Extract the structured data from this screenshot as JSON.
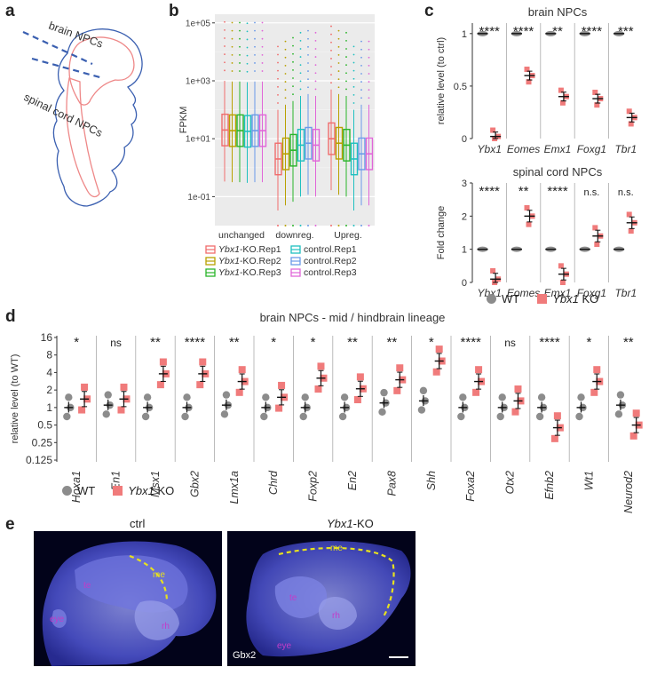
{
  "panel_letters": {
    "a": "a",
    "b": "b",
    "c": "c",
    "d": "d",
    "e": "e"
  },
  "panel_a": {
    "brain_label": "brain NPCs",
    "spinal_label": "spinal cord NPCs"
  },
  "chart_data": [
    {
      "id": "b",
      "type": "box",
      "ylabel": "FPKM",
      "y_scale": "log10",
      "ytick_labels": [
        "1e-01",
        "1e+01",
        "1e+03",
        "1e+05"
      ],
      "categories": [
        "unchanged",
        "downreg.",
        "Upreg."
      ],
      "series": [
        {
          "name": "Ybx1-KO.Rep1",
          "color": "#f06c6c",
          "medians": [
            20,
            2,
            10
          ]
        },
        {
          "name": "Ybx1-KO.Rep2",
          "color": "#b8a000",
          "medians": [
            19,
            3,
            7
          ]
        },
        {
          "name": "Ybx1-KO.Rep3",
          "color": "#2ab52a",
          "medians": [
            19,
            4,
            6
          ]
        },
        {
          "name": "control.Rep1",
          "color": "#1fc0c0",
          "medians": [
            18,
            6,
            2
          ]
        },
        {
          "name": "control.Rep2",
          "color": "#6a9ae8",
          "medians": [
            19,
            7,
            3
          ]
        },
        {
          "name": "control.Rep3",
          "color": "#e066d8",
          "medians": [
            19,
            6,
            3
          ]
        }
      ],
      "legend_ko_prefix": "Ybx1",
      "legend_ko_suffixes": [
        "-KO.Rep1",
        "-KO.Rep2",
        "-KO.Rep3"
      ],
      "legend_ctrl": [
        "control.Rep1",
        "control.Rep2",
        "control.Rep3"
      ]
    },
    {
      "id": "c_top",
      "type": "scatter",
      "title": "brain NPCs",
      "ylabel": "relative level (to ctrl)",
      "ylim": [
        0,
        1.1
      ],
      "ytick_labels": [
        "0",
        "0.5",
        "1"
      ],
      "categories": [
        "Ybx1",
        "Eomes",
        "Emx1",
        "Foxg1",
        "Tbr1"
      ],
      "significance": [
        "****",
        "****",
        "**",
        "****",
        "***"
      ],
      "wt_mean": [
        1,
        1,
        1,
        1,
        1
      ],
      "ko_mean": [
        0.02,
        0.6,
        0.4,
        0.38,
        0.2
      ]
    },
    {
      "id": "c_bottom",
      "type": "scatter",
      "title": "spinal cord NPCs",
      "ylabel": "Fold change",
      "ylim": [
        0,
        3
      ],
      "ytick_labels": [
        "0",
        "1",
        "2",
        "3"
      ],
      "categories": [
        "Ybx1",
        "Eomes",
        "Emx1",
        "Foxg1",
        "Tbr1"
      ],
      "significance": [
        "****",
        "**",
        "****",
        "n.s.",
        "n.s."
      ],
      "wt_mean": [
        1,
        1,
        1,
        1,
        1
      ],
      "ko_mean": [
        0.1,
        2.0,
        0.25,
        1.4,
        1.8
      ]
    },
    {
      "id": "d",
      "type": "scatter",
      "title": "brain NPCs - mid / hindbrain lineage",
      "ylabel": "relative level (to WT)",
      "y_scale": "log2",
      "ytick_labels": [
        "16",
        "8",
        "4",
        "2",
        "1",
        "0.5",
        "0.25",
        "0.125"
      ],
      "categories": [
        "Hoxa1",
        "En1",
        "Msx1",
        "Gbx2",
        "Lmx1a",
        "Chrd",
        "Foxp2",
        "En2",
        "Pax8",
        "Shh",
        "Foxa2",
        "Otx2",
        "Efnb2",
        "Wt1",
        "Neurod2"
      ],
      "significance": [
        "*",
        "ns",
        "**",
        "****",
        "**",
        "*",
        "*",
        "**",
        "**",
        "*",
        "****",
        "ns",
        "****",
        "*",
        "**"
      ],
      "wt_mean": [
        1,
        1.1,
        1,
        1,
        1.1,
        1,
        1,
        1,
        1.2,
        1.3,
        1,
        1,
        1,
        1,
        1.1
      ],
      "ko_mean": [
        1.4,
        1.4,
        3.8,
        3.8,
        2.8,
        1.5,
        3.2,
        2.1,
        3,
        6.3,
        2.8,
        1.3,
        0.45,
        2.8,
        0.5
      ]
    }
  ],
  "legend_wt": "WT",
  "legend_ko_gene": "Ybx1",
  "legend_ko_suffix": " KO",
  "panel_e": {
    "ctrl_label": "ctrl",
    "ko_gene": "Ybx1",
    "ko_suffix": "-KO",
    "stain": "Gbx2",
    "region_labels": [
      "te",
      "me",
      "rh",
      "eye"
    ]
  },
  "colors": {
    "wt": "#8c8c8c",
    "ko": "#f07b7b",
    "panel_e_bg": "#02031a",
    "annot": "#e6e020",
    "region": "#c33cc8"
  }
}
